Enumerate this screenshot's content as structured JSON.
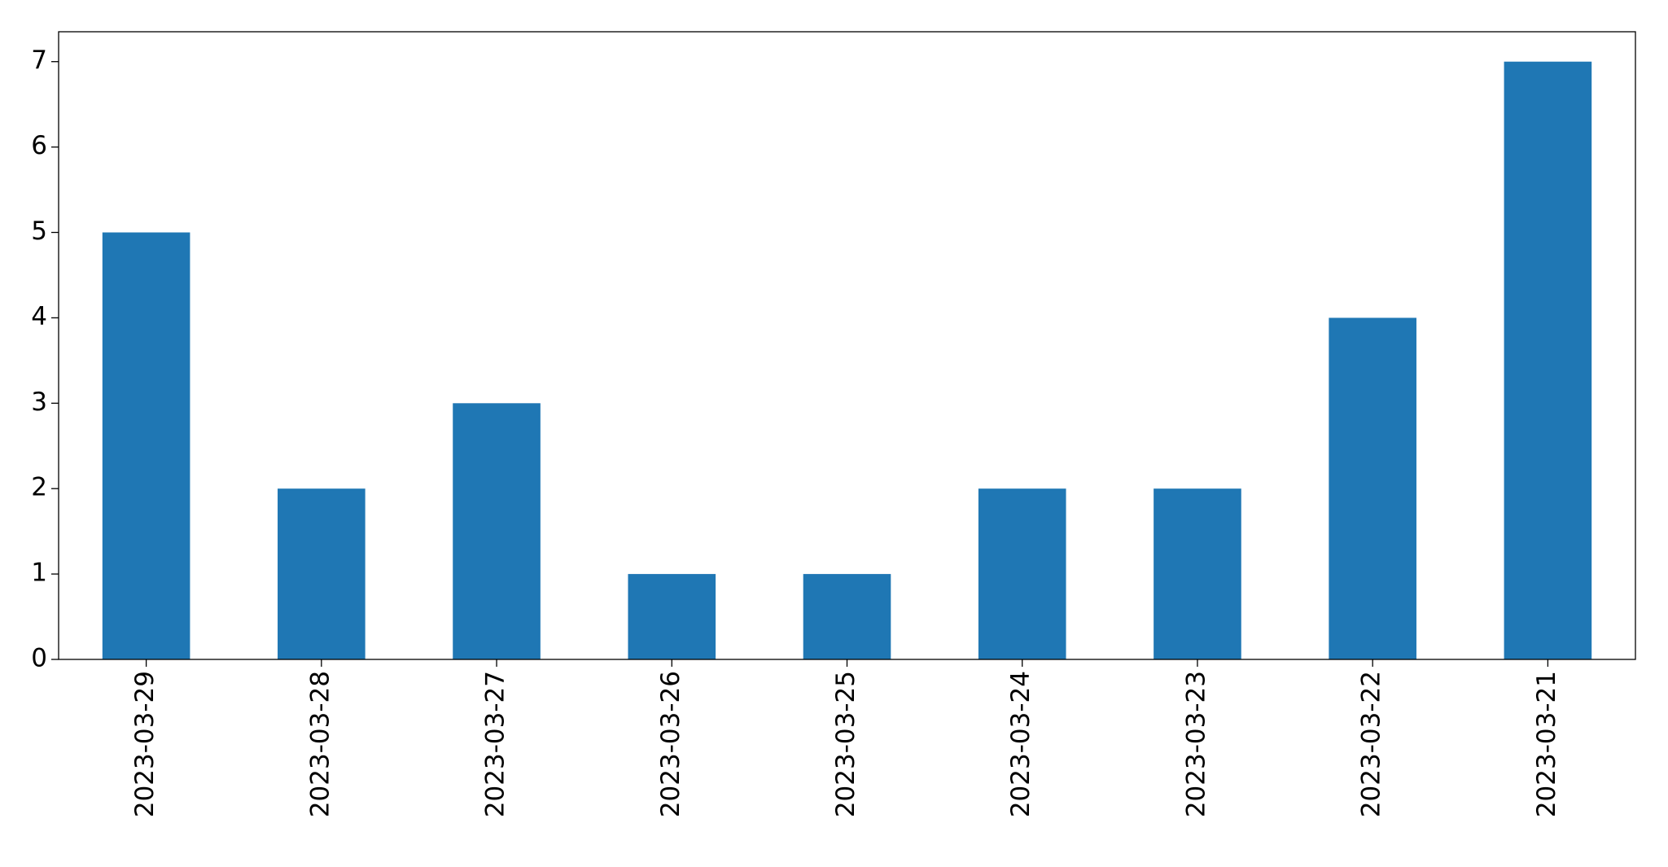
{
  "chart_data": {
    "type": "bar",
    "categories": [
      "2023-03-29",
      "2023-03-28",
      "2023-03-27",
      "2023-03-26",
      "2023-03-25",
      "2023-03-24",
      "2023-03-23",
      "2023-03-22",
      "2023-03-21"
    ],
    "values": [
      5,
      2,
      3,
      1,
      1,
      2,
      2,
      4,
      7
    ],
    "color": "#1f77b4",
    "ylim": [
      0,
      7.35
    ],
    "yticks": [
      0,
      1,
      2,
      3,
      4,
      5,
      6,
      7
    ],
    "grid": false
  }
}
